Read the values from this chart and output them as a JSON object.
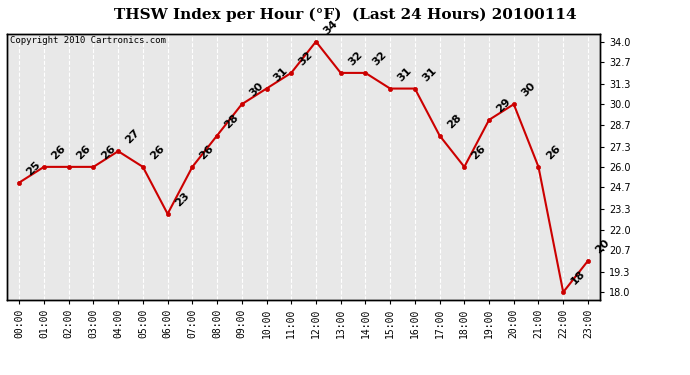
{
  "title": "THSW Index per Hour (°F)  (Last 24 Hours) 20100114",
  "copyright": "Copyright 2010 Cartronics.com",
  "hours": [
    "00:00",
    "01:00",
    "02:00",
    "03:00",
    "04:00",
    "05:00",
    "06:00",
    "07:00",
    "08:00",
    "09:00",
    "10:00",
    "11:00",
    "12:00",
    "13:00",
    "14:00",
    "15:00",
    "16:00",
    "17:00",
    "18:00",
    "19:00",
    "20:00",
    "21:00",
    "22:00",
    "23:00"
  ],
  "values": [
    25,
    26,
    26,
    26,
    27,
    26,
    23,
    26,
    28,
    30,
    31,
    32,
    34,
    32,
    32,
    31,
    31,
    28,
    26,
    29,
    30,
    26,
    18,
    20
  ],
  "line_color": "#cc0000",
  "ylim": [
    17.5,
    34.5
  ],
  "yticks_right": [
    18.0,
    19.3,
    20.7,
    22.0,
    23.3,
    24.7,
    26.0,
    27.3,
    28.7,
    30.0,
    31.3,
    32.7,
    34.0
  ],
  "bg_color": "#ffffff",
  "plot_bg_color": "#e8e8e8",
  "grid_color": "#ffffff",
  "title_fontsize": 11,
  "tick_fontsize": 7,
  "annotation_fontsize": 8,
  "copyright_fontsize": 6.5
}
